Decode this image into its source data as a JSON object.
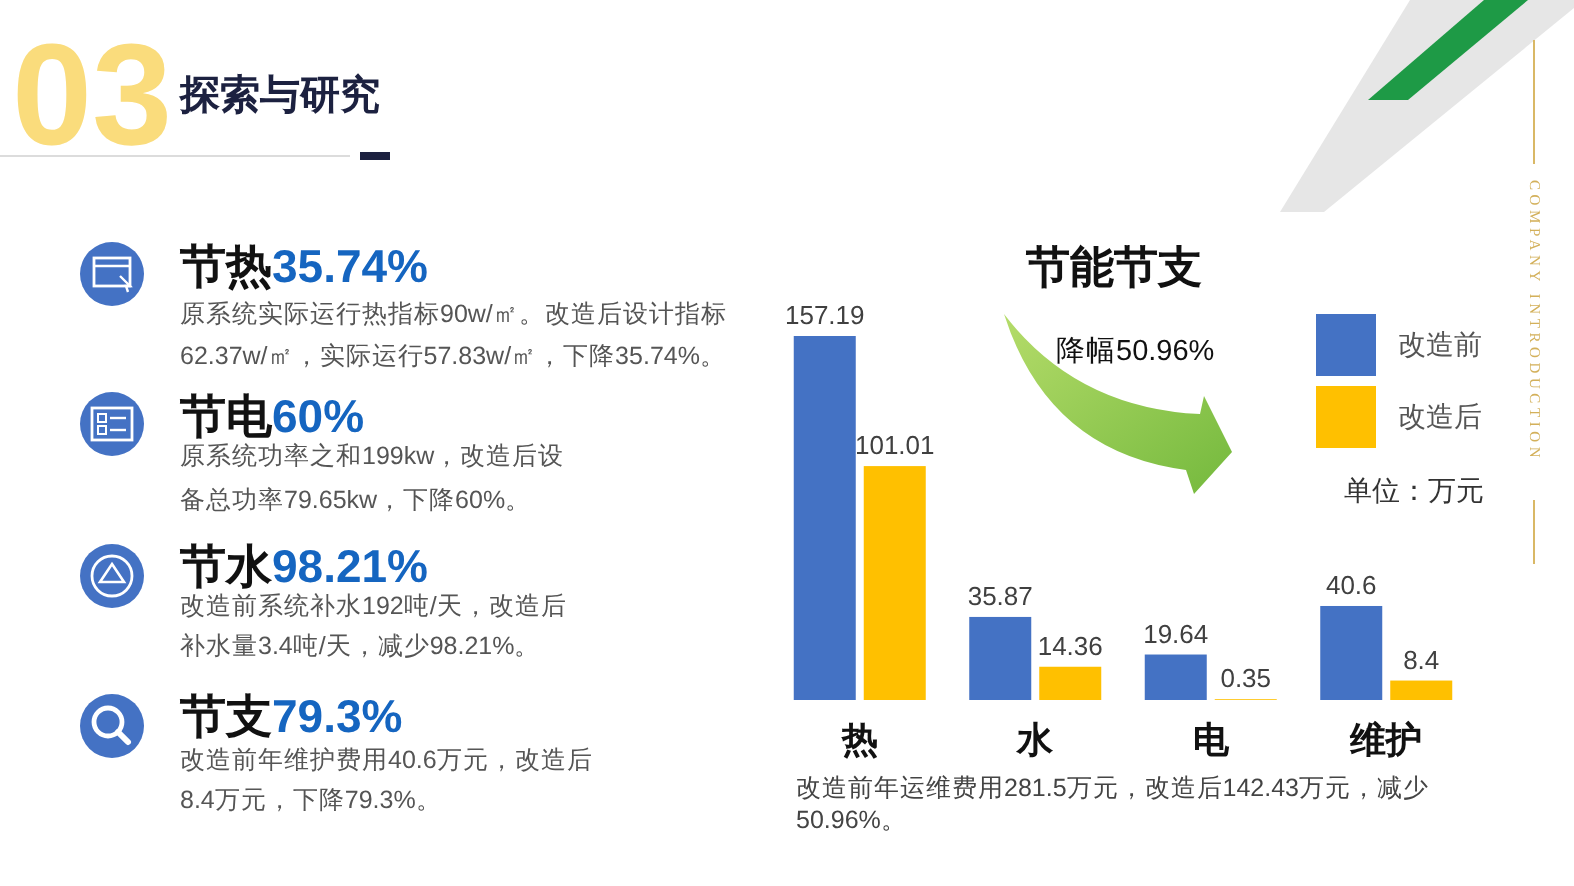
{
  "chart_data": {
    "type": "bar",
    "title": "节能节支",
    "categories": [
      "热",
      "水",
      "电",
      "维护"
    ],
    "series": [
      {
        "name": "改造前",
        "color": "#4472c4",
        "values": [
          157.19,
          35.87,
          19.64,
          40.6
        ]
      },
      {
        "name": "改造后",
        "color": "#ffc000",
        "values": [
          101.01,
          14.36,
          0.35,
          8.4
        ]
      }
    ],
    "data_labels": true,
    "legend": "top right",
    "annotations": [
      "03",
      "探索与研究",
      "节热35.74%",
      "原系统实际运行热指标90w/㎡。改造后设计指标62.37w/㎡，实际运行57.83w/㎡，下降35.74%。",
      "节电60%",
      "原系统功率之和199kw，改造后设备总功率79.65kw，下降60%。",
      "节水98.21%",
      "改造前系统补水192吨/天，改造后补水量3.4吨/天，减少98.21%。",
      "节支79.3%",
      "改造前年维护费用40.6万元，改造后8.4万元，下降79.3%。",
      "降幅50.96%",
      "单位：万元",
      "改造前年运维费用281.5万元，改造后142.43万元，减少50.96%。",
      "COMPANY INTRODUCTION"
    ]
  }
}
